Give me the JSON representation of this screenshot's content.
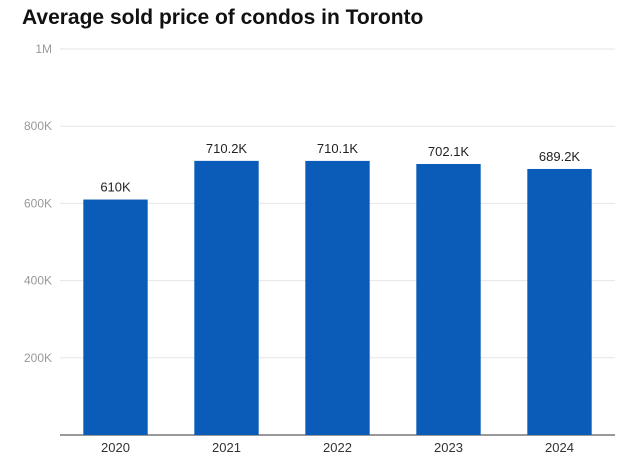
{
  "chart_data": {
    "type": "bar",
    "title": "Average sold price of condos in Toronto",
    "xlabel": "",
    "ylabel": "",
    "categories": [
      "2020",
      "2021",
      "2022",
      "2023",
      "2024"
    ],
    "values": [
      610000,
      710200,
      710100,
      702100,
      689200
    ],
    "data_labels": [
      "610K",
      "710.2K",
      "710.1K",
      "702.1K",
      "689.2K"
    ],
    "ylim": [
      0,
      1000000
    ],
    "y_ticks": [
      200000,
      400000,
      600000,
      800000,
      1000000
    ],
    "y_tick_labels": [
      "200K",
      "400K",
      "600K",
      "800K",
      "1M"
    ],
    "grid": true,
    "legend": "none",
    "bar_color": "#0b5cb8"
  }
}
